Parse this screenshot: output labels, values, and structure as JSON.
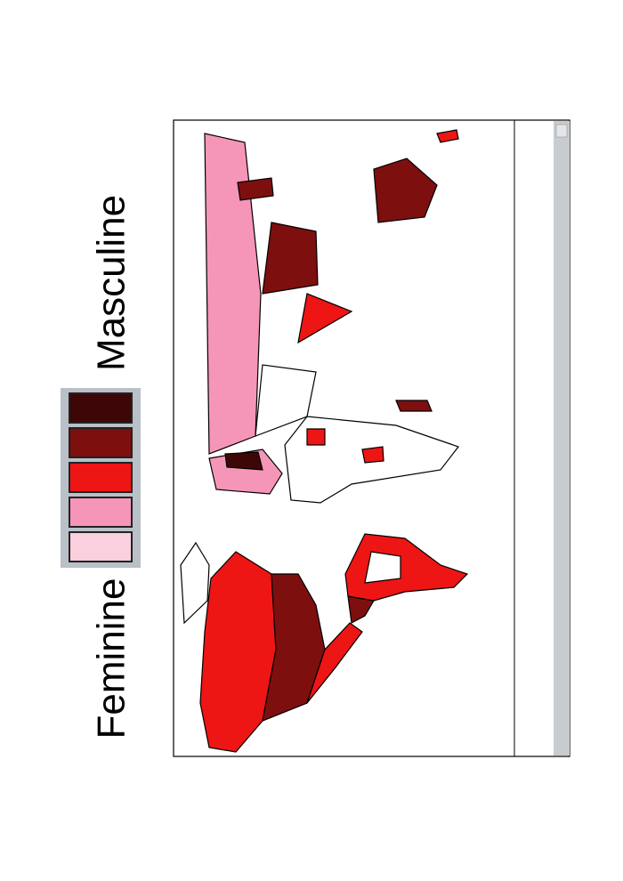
{
  "legend": {
    "low_label": "Feminine",
    "high_label": "Masculine",
    "colors": [
      "#fbd0de",
      "#f596b8",
      "#ee1515",
      "#7e0f0f",
      "#3d0708"
    ]
  }
}
